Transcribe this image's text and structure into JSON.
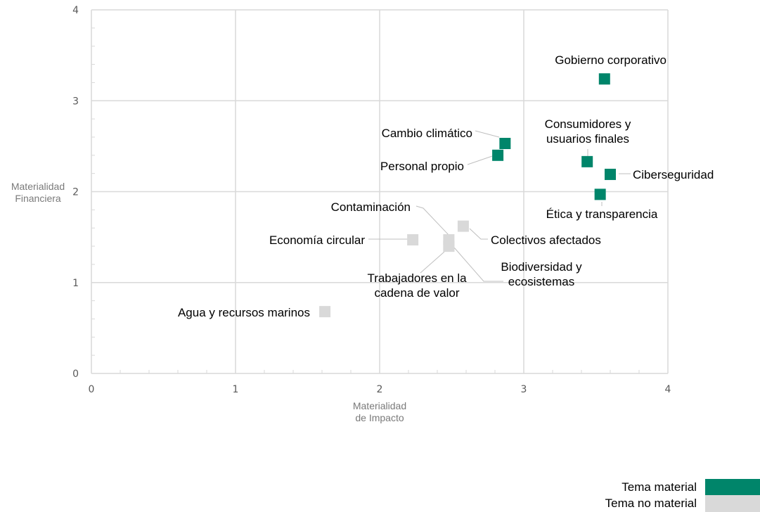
{
  "chart_data": {
    "type": "scatter",
    "xlabel": [
      "Materialidad",
      "de Impacto"
    ],
    "ylabel": [
      "Materialidad",
      "Financiera"
    ],
    "xlim": [
      0,
      4
    ],
    "ylim": [
      0,
      4
    ],
    "xticks": [
      "0",
      "1",
      "2",
      "3",
      "4"
    ],
    "yticks": [
      "0",
      "1",
      "2",
      "3",
      "4"
    ],
    "grid": true,
    "colors": {
      "material": "#00856a",
      "no_material": "#d9d9d9",
      "grid": "#d9d9d9",
      "leader": "#bfbfbf"
    },
    "points": [
      {
        "name": "Gobierno corporativo",
        "x": 3.56,
        "y": 3.24,
        "material": true
      },
      {
        "name": "Cambio climático",
        "x": 2.87,
        "y": 2.53,
        "material": true
      },
      {
        "name": "Personal propio",
        "x": 2.82,
        "y": 2.4,
        "material": true
      },
      {
        "name": "Consumidores y usuarios finales",
        "x": 3.44,
        "y": 2.33,
        "material": true
      },
      {
        "name": "Ciberseguridad",
        "x": 3.6,
        "y": 2.19,
        "material": true
      },
      {
        "name": "Ética y transparencia",
        "x": 3.53,
        "y": 1.97,
        "material": true
      },
      {
        "name": "Contaminación",
        "x": 2.48,
        "y": 1.47,
        "material": false
      },
      {
        "name": "Colectivos afectados",
        "x": 2.58,
        "y": 1.62,
        "material": false
      },
      {
        "name": "Economía circular",
        "x": 2.23,
        "y": 1.47,
        "material": false
      },
      {
        "name": "Biodiversidad y ecosistemas",
        "x": 2.48,
        "y": 1.4,
        "material": false
      },
      {
        "name": "Trabajadores en la cadena de valor",
        "x": 2.48,
        "y": 1.4,
        "material": false
      },
      {
        "name": "Agua y recursos marinos",
        "x": 1.62,
        "y": 0.68,
        "material": false
      }
    ],
    "labels": [
      {
        "lines": [
          "Gobierno corporativo"
        ]
      },
      {
        "lines": [
          "Cambio climático"
        ]
      },
      {
        "lines": [
          "Personal propio"
        ]
      },
      {
        "lines": [
          "Consumidores y",
          "usuarios finales"
        ]
      },
      {
        "lines": [
          "Ciberseguridad"
        ]
      },
      {
        "lines": [
          "Ética y transparencia"
        ]
      },
      {
        "lines": [
          "Contaminación"
        ]
      },
      {
        "lines": [
          "Colectivos afectados"
        ]
      },
      {
        "lines": [
          "Economía circular"
        ]
      },
      {
        "lines": [
          "Biodiversidad y",
          "ecosistemas"
        ]
      },
      {
        "lines": [
          "Trabajadores en la",
          "cadena de valor"
        ]
      },
      {
        "lines": [
          "Agua y recursos marinos"
        ]
      }
    ],
    "legend": [
      {
        "label": "Tema material",
        "color": "#00856a"
      },
      {
        "label": "Tema no material",
        "color": "#d9d9d9"
      }
    ]
  }
}
